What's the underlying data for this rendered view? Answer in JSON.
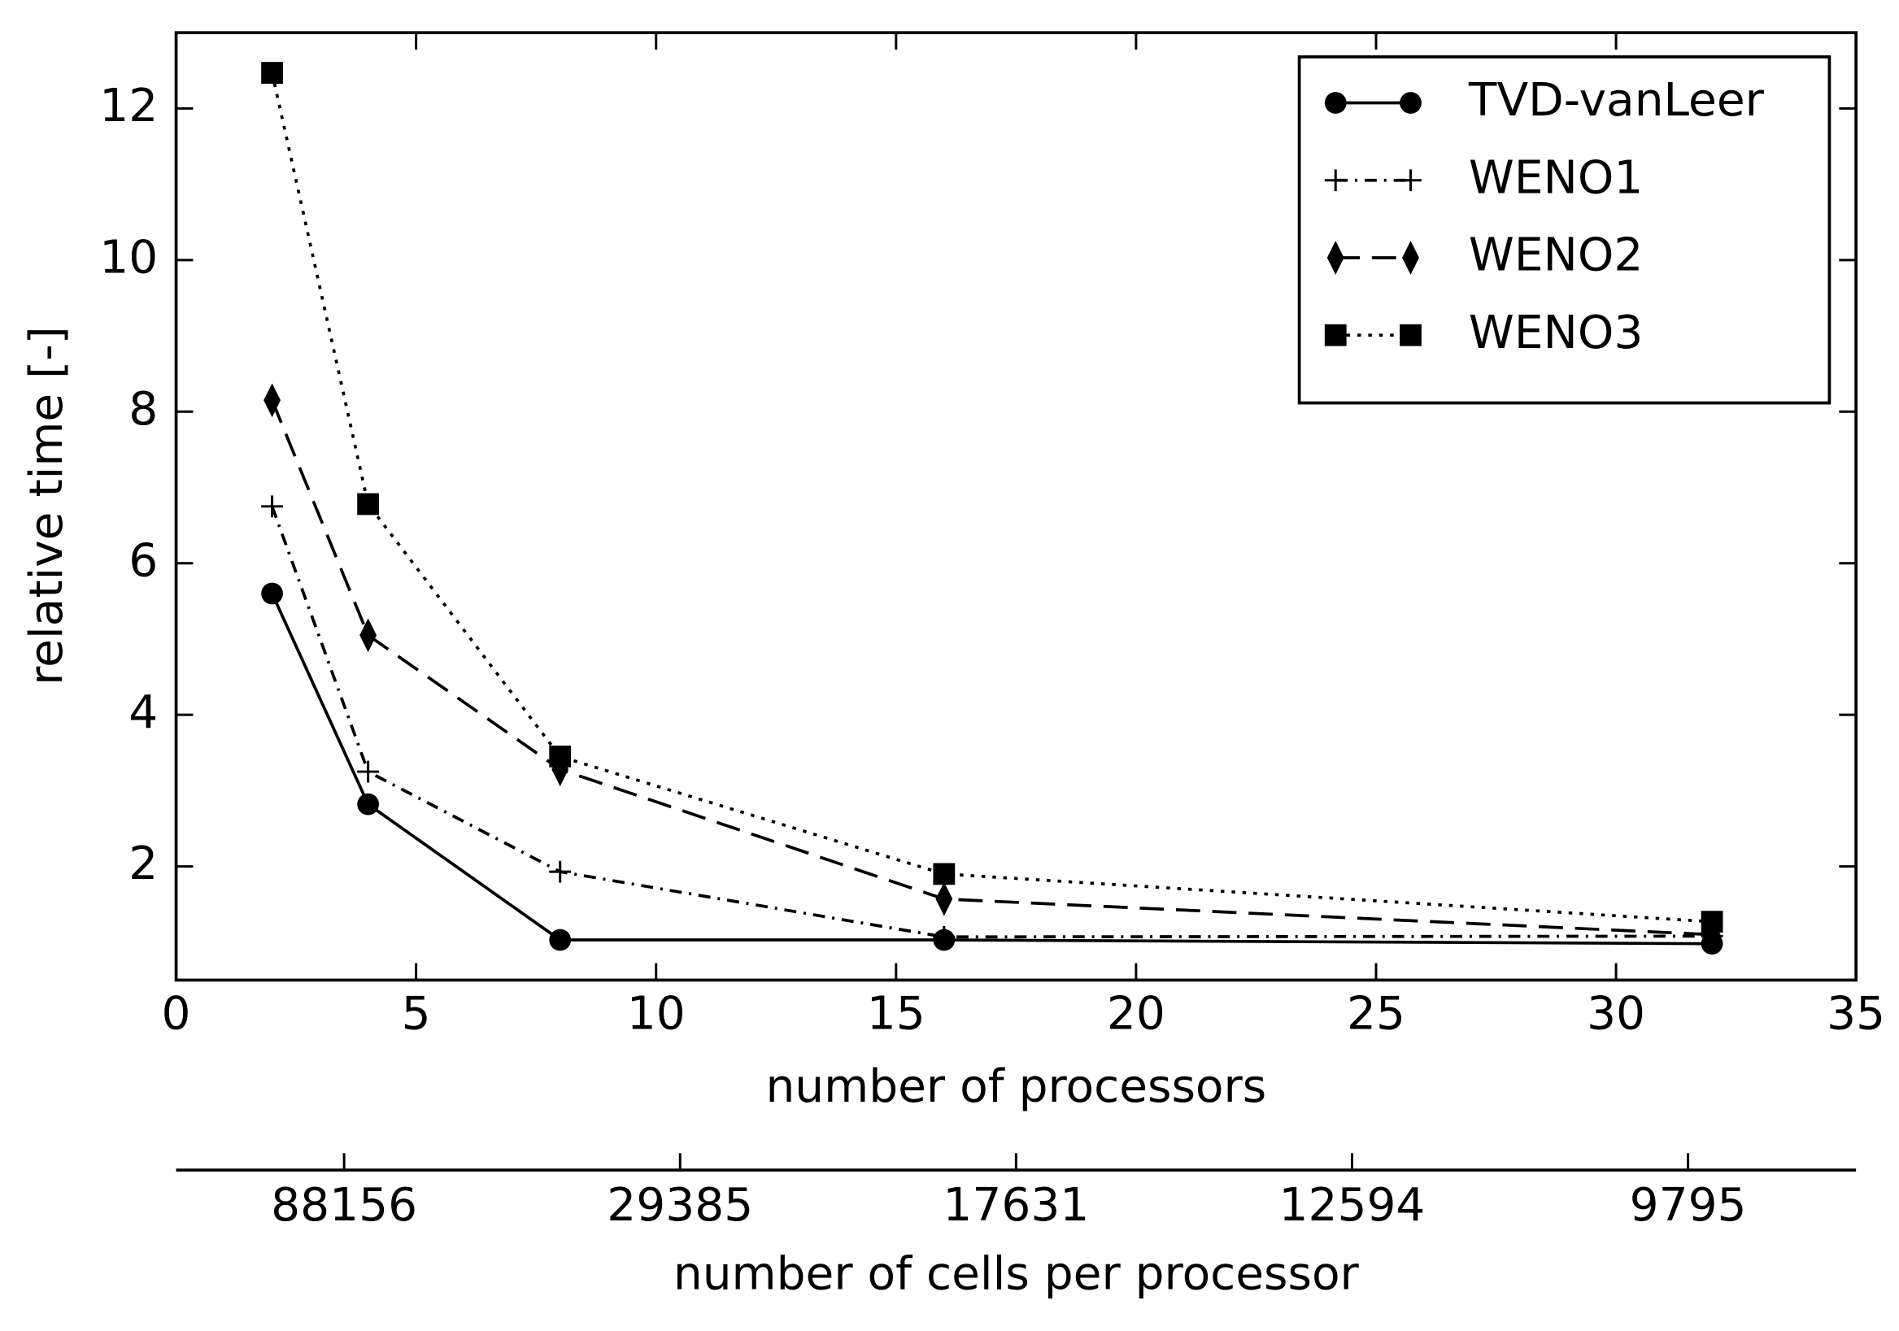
{
  "chart_data": {
    "type": "line",
    "xlabel": "number of processors",
    "ylabel": "relative time [-]",
    "x": [
      2,
      4,
      8,
      16,
      32
    ],
    "series": [
      {
        "name": "TVD-vanLeer",
        "color": "#000000",
        "marker": "circle",
        "linestyle": "solid",
        "values": [
          5.6,
          2.82,
          1.03,
          1.03,
          0.98
        ]
      },
      {
        "name": "WENO1",
        "color": "#000000",
        "marker": "plus",
        "linestyle": "dashdot",
        "values": [
          6.75,
          3.25,
          1.93,
          1.07,
          1.08
        ]
      },
      {
        "name": "WENO2",
        "color": "#000000",
        "marker": "diamond",
        "linestyle": "dashed",
        "values": [
          8.15,
          5.05,
          3.28,
          1.57,
          1.1
        ]
      },
      {
        "name": "WENO3",
        "color": "#000000",
        "marker": "square",
        "linestyle": "dotted",
        "values": [
          12.47,
          6.78,
          3.45,
          1.9,
          1.27
        ]
      }
    ],
    "xlim": [
      0,
      35
    ],
    "xticks": [
      0,
      5,
      10,
      15,
      20,
      25,
      30,
      35
    ],
    "ylim": [
      0.5,
      13
    ],
    "yticks": [
      2,
      4,
      6,
      8,
      10,
      12
    ],
    "x2label": "number of cells per processor",
    "x2ticks": [
      {
        "value": 3.5,
        "label": "88156"
      },
      {
        "value": 10.5,
        "label": "29385"
      },
      {
        "value": 17.5,
        "label": "17631"
      },
      {
        "value": 24.5,
        "label": "12594"
      },
      {
        "value": 31.5,
        "label": "9795"
      }
    ],
    "legend": "upper right"
  }
}
